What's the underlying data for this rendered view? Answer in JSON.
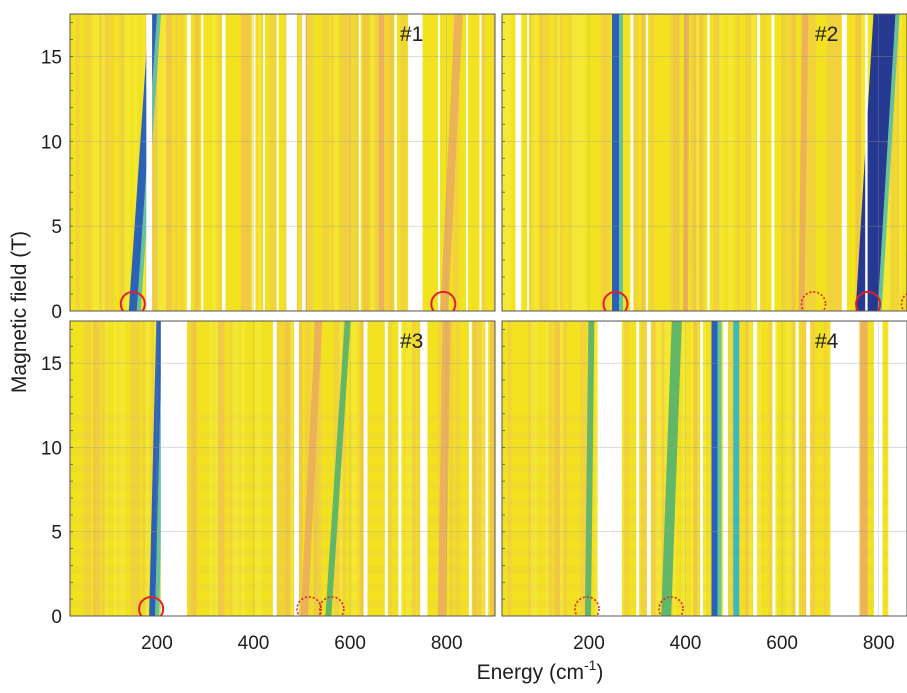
{
  "chart_data": {
    "type": "heatmap",
    "xlabel": "Energy (cm",
    "xlabel_superscript": "-1",
    "xlabel_suffix": ")",
    "ylabel": "Magnetic field (T)",
    "xlim": [
      20,
      900
    ],
    "ylim": [
      0,
      17.5
    ],
    "xticks": [
      200,
      400,
      600,
      800
    ],
    "yticks": [
      0,
      5,
      10,
      15
    ],
    "grid": true,
    "colors": {
      "background": "#f2e21f",
      "background_alt": "#efe436",
      "weak": "#f1c74a",
      "medium": "#ecae5c",
      "green": "#55b36c",
      "teal": "#29b7c9",
      "strong": "#1a56c2",
      "strongest": "#142a9a",
      "gap": "#ffffff",
      "marker": "#e0202a"
    },
    "panels": [
      {
        "label": "#1",
        "gaps": [
          [
            178,
            190
          ],
          [
            262,
            270
          ],
          [
            292,
            296
          ],
          [
            335,
            342
          ],
          [
            398,
            404
          ],
          [
            420,
            424
          ],
          [
            448,
            452
          ],
          [
            468,
            490
          ],
          [
            500,
            508
          ],
          [
            618,
            622
          ],
          [
            692,
            697
          ],
          [
            720,
            750
          ],
          [
            782,
            786
          ],
          [
            840,
            844
          ],
          [
            868,
            872
          ]
        ],
        "modes": [
          {
            "e0": 150,
            "e17": 192,
            "strength": "strong",
            "width": 8
          },
          {
            "e0": 225,
            "e17": 225,
            "strength": "weak",
            "width": 6
          },
          {
            "e0": 380,
            "e17": 380,
            "strength": "weak",
            "width": 6
          },
          {
            "e0": 505,
            "e17": 505,
            "strength": "medium",
            "width": 6
          },
          {
            "e0": 665,
            "e17": 665,
            "strength": "medium",
            "width": 5
          },
          {
            "e0": 795,
            "e17": 825,
            "strength": "medium",
            "width": 8
          }
        ],
        "markers": [
          {
            "energy": 150,
            "field": 0.3,
            "style": "solid"
          },
          {
            "energy": 793,
            "field": 0.3,
            "style": "solid"
          }
        ]
      },
      {
        "label": "#2",
        "gaps": [
          [
            48,
            60
          ],
          [
            72,
            76
          ],
          [
            286,
            292
          ],
          [
            318,
            322
          ],
          [
            445,
            450
          ],
          [
            548,
            554
          ],
          [
            578,
            584
          ],
          [
            724,
            734
          ],
          [
            772,
            777
          ]
        ],
        "modes": [
          {
            "e0": 255,
            "e17": 255,
            "strength": "strong",
            "width": 7
          },
          {
            "e0": 400,
            "e17": 402,
            "strength": "medium",
            "width": 5
          },
          {
            "e0": 640,
            "e17": 648,
            "strength": "medium",
            "width": 6
          },
          {
            "e0": 775,
            "e17": 812,
            "strength": "strongest",
            "width": 22
          },
          {
            "e0": 862,
            "e17": 870,
            "strength": "medium",
            "width": 6
          }
        ],
        "markers": [
          {
            "energy": 255,
            "field": 0.3,
            "style": "solid"
          },
          {
            "energy": 665,
            "field": 0.3,
            "style": "dotted"
          },
          {
            "energy": 778,
            "field": 0.3,
            "style": "solid"
          },
          {
            "energy": 872,
            "field": 0.3,
            "style": "dotted"
          }
        ]
      },
      {
        "label": "#3",
        "gaps": [
          [
            208,
            262
          ],
          [
            440,
            448
          ],
          [
            484,
            494
          ],
          [
            628,
            636
          ],
          [
            672,
            678
          ],
          [
            700,
            706
          ],
          [
            745,
            760
          ],
          [
            846,
            852
          ],
          [
            880,
            886
          ]
        ],
        "modes": [
          {
            "e0": 190,
            "e17": 205,
            "strength": "strong",
            "width": 6
          },
          {
            "e0": 335,
            "e17": 335,
            "strength": "weak",
            "width": 5
          },
          {
            "e0": 505,
            "e17": 535,
            "strength": "medium",
            "width": 7
          },
          {
            "e0": 555,
            "e17": 595,
            "strength": "green",
            "width": 6
          },
          {
            "e0": 790,
            "e17": 800,
            "strength": "medium",
            "width": 8
          }
        ],
        "markers": [
          {
            "energy": 188,
            "field": 0.3,
            "style": "solid"
          },
          {
            "energy": 515,
            "field": 0.3,
            "style": "dotted"
          },
          {
            "energy": 562,
            "field": 0.3,
            "style": "dotted"
          }
        ]
      },
      {
        "label": "#4",
        "gaps": [
          [
            218,
            268
          ],
          [
            298,
            304
          ],
          [
            320,
            328
          ],
          [
            430,
            436
          ],
          [
            478,
            488
          ],
          [
            540,
            548
          ],
          [
            580,
            586
          ],
          [
            628,
            634
          ],
          [
            650,
            658
          ],
          [
            700,
            760
          ],
          [
            790,
            808
          ],
          [
            820,
            900
          ]
        ],
        "modes": [
          {
            "e0": 198,
            "e17": 205,
            "strength": "green",
            "width": 6
          },
          {
            "e0": 360,
            "e17": 382,
            "strength": "green",
            "width": 10
          },
          {
            "e0": 460,
            "e17": 460,
            "strength": "strong",
            "width": 6
          },
          {
            "e0": 505,
            "e17": 505,
            "strength": "teal",
            "width": 6
          },
          {
            "e0": 770,
            "e17": 770,
            "strength": "medium",
            "width": 7
          }
        ],
        "markers": [
          {
            "energy": 196,
            "field": 0.3,
            "style": "dotted"
          },
          {
            "energy": 370,
            "field": 0.3,
            "style": "dotted"
          }
        ]
      }
    ]
  }
}
